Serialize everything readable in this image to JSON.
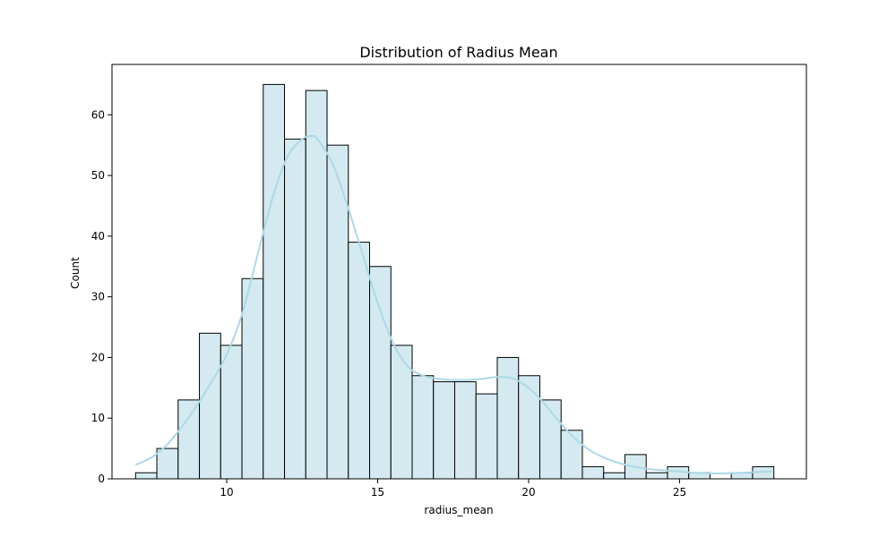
{
  "chart_data": {
    "type": "bar",
    "title": "Distribution of Radius Mean",
    "xlabel": "radius_mean",
    "ylabel": "Count",
    "xlim": [
      6.2,
      29.2
    ],
    "ylim": [
      0,
      68.3
    ],
    "x_ticks": [
      10,
      15,
      20,
      25
    ],
    "y_ticks": [
      0,
      10,
      20,
      30,
      40,
      50,
      60
    ],
    "bin_start": 6.981,
    "bin_width": 0.7047,
    "counts": [
      1,
      5,
      13,
      24,
      22,
      33,
      65,
      56,
      64,
      55,
      39,
      35,
      22,
      17,
      16,
      16,
      14,
      20,
      17,
      13,
      8,
      2,
      1,
      4,
      1,
      2,
      1,
      0,
      1,
      2
    ],
    "kde": {
      "x": [
        6.98,
        7.5,
        8.0,
        8.5,
        9.0,
        9.5,
        10.0,
        10.5,
        11.0,
        11.5,
        12.0,
        12.5,
        12.8,
        13.0,
        13.5,
        14.0,
        14.5,
        15.0,
        15.5,
        16.0,
        16.5,
        17.0,
        17.5,
        18.0,
        18.5,
        19.0,
        19.5,
        20.0,
        20.5,
        21.0,
        21.5,
        22.0,
        22.5,
        23.0,
        23.5,
        24.0,
        24.5,
        25.0,
        25.5,
        26.0,
        26.5,
        27.0,
        27.5,
        28.11
      ],
      "y": [
        2.3,
        3.5,
        5.5,
        8.5,
        12.0,
        16.0,
        20.5,
        27.0,
        36.5,
        46.0,
        53.0,
        56.0,
        56.5,
        56.0,
        52.0,
        45.0,
        37.0,
        29.0,
        22.5,
        18.5,
        17.0,
        16.5,
        16.3,
        16.3,
        16.5,
        16.8,
        16.5,
        15.0,
        12.5,
        9.5,
        6.8,
        4.8,
        3.5,
        2.6,
        2.0,
        1.6,
        1.4,
        1.2,
        1.0,
        0.9,
        0.9,
        1.0,
        1.1,
        1.2
      ]
    },
    "grid": false,
    "colors": {
      "bar_fill": "#d4eaf0",
      "bar_edge": "#000000",
      "kde_line": "#add8e6"
    }
  }
}
